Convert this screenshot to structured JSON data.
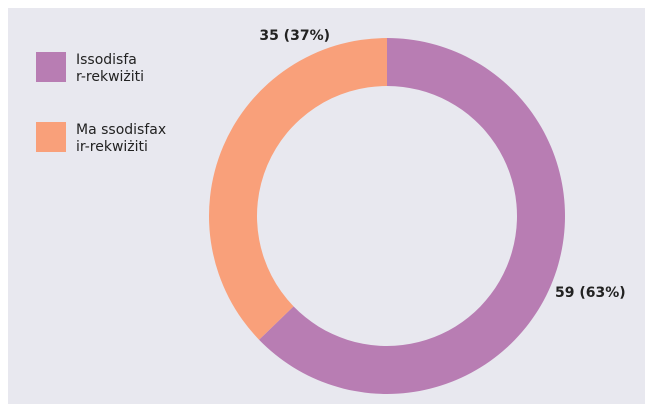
{
  "chart_data": {
    "type": "donut",
    "categories": [
      "Issodisfa r-rekwiżiti",
      "Ma ssodisfax ir-rekwiżiti"
    ],
    "values": [
      59,
      35
    ],
    "value_labels": [
      "59 (63%)",
      "35 (37%)"
    ],
    "colors": [
      "#b87db3",
      "#f9a07a"
    ],
    "legend": "top-left"
  }
}
